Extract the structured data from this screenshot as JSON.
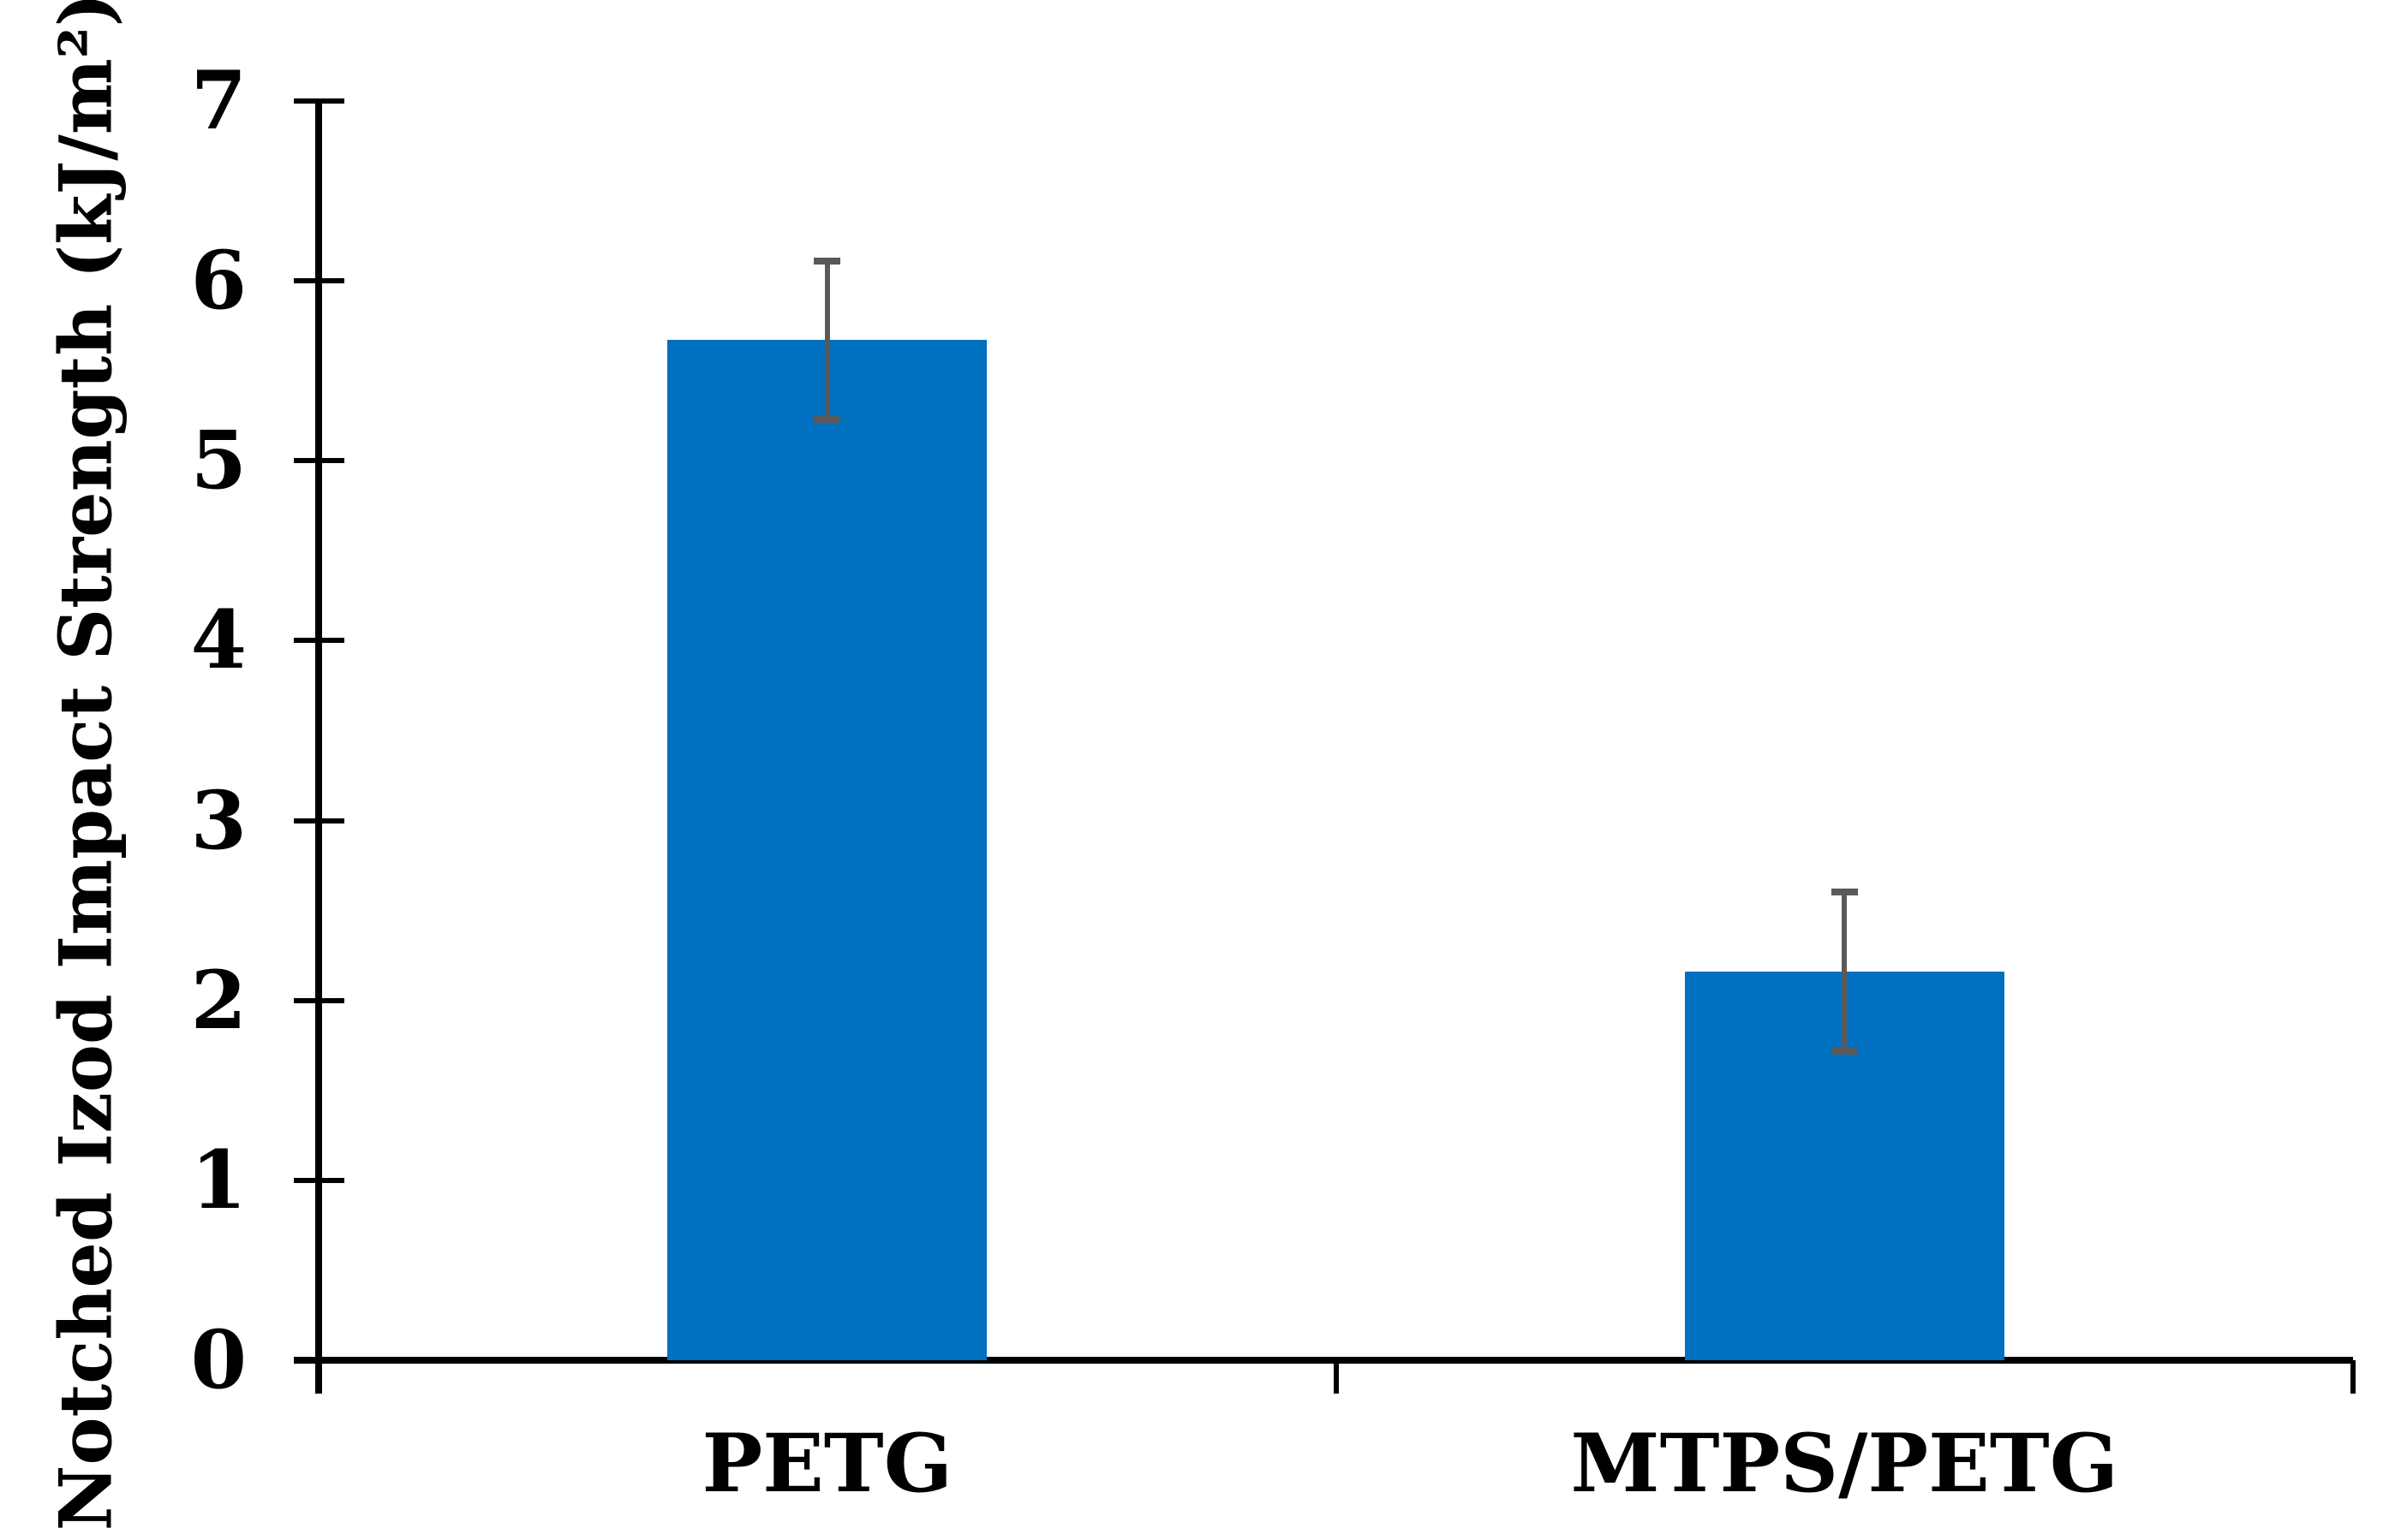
{
  "chart_data": {
    "type": "bar",
    "categories": [
      "PETG",
      "MTPS/PETG"
    ],
    "values": [
      5.67,
      2.16
    ],
    "error_bars_plus": [
      0.46,
      0.46
    ],
    "error_bars_minus": [
      0.46,
      0.46
    ],
    "title": "",
    "xlabel": "",
    "ylabel": "Notched Izod Impact Strength (kJ/m²)",
    "ylim": [
      0,
      7
    ],
    "yticks": [
      0,
      1,
      2,
      3,
      4,
      5,
      6,
      7
    ],
    "grid": false,
    "legend": "none",
    "bar_color": "#0070C0",
    "error_bar_color": "#595959",
    "axis_color": "#000000",
    "background_color": "#FFFFFF"
  }
}
